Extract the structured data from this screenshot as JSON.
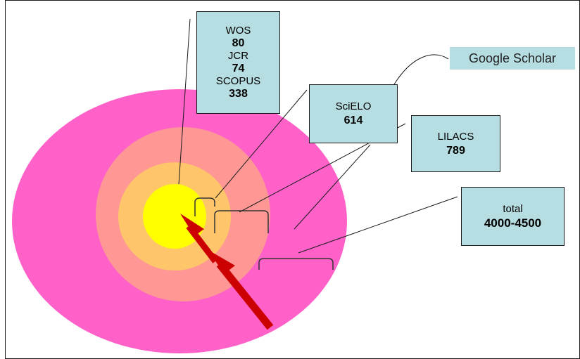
{
  "diagram": {
    "colors": {
      "outer_ring": "#ff61c8",
      "ring3": "#ff9894",
      "ring2": "#ffc56a",
      "core": "#ffff00",
      "box_fill": "#b6dde1",
      "arrow": "#cc0000"
    },
    "wos_box": {
      "wos_label": "WOS",
      "wos_value": "80",
      "jcr_label": "JCR",
      "jcr_value": "74",
      "scopus_label": "SCOPUS",
      "scopus_value": "338"
    },
    "scielo_box": {
      "label": "SciELO",
      "value": "614"
    },
    "lilacs_box": {
      "label": "LILACS",
      "value": "789"
    },
    "total_box": {
      "label": "total",
      "value": "4000-4500"
    },
    "google_box": {
      "label": "Google Scholar"
    }
  }
}
